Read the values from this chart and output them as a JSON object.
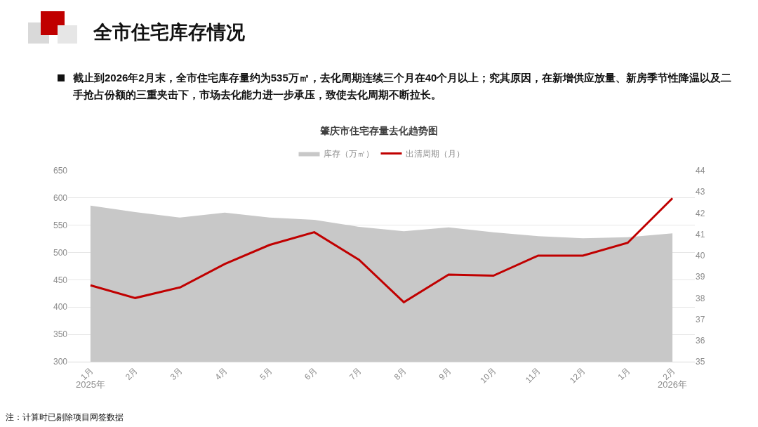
{
  "chart_data": {
    "type": "area",
    "title": "肇庆市住宅存量去化趋势图",
    "annotations": [
      "全市住宅库存情况",
      "截止到2026年2月末，全市住宅库存量约为535万㎡，去化周期连续三个月在40个月以上；究其原因，在新增供应放量、新房季节性降温以及二手抢占份额的三重夹击下，市场去化能力进一步承压，致使去化周期不断拉长。",
      "2025年",
      "2026年",
      "注：计算时已剔除项目网签数据"
    ],
    "categories": [
      "1月",
      "2月",
      "3月",
      "4月",
      "5月",
      "6月",
      "7月",
      "8月",
      "9月",
      "10月",
      "11月",
      "12月",
      "1月",
      "2月"
    ],
    "series": [
      {
        "name": "库存（万㎡）",
        "color": "#c8c8c8",
        "axis": "y",
        "values": [
          586,
          574,
          564,
          573,
          564,
          560,
          547,
          539,
          546,
          537,
          530,
          526,
          528,
          535
        ]
      },
      {
        "name": "出清周期（月）",
        "type": "line",
        "color": "#c00000",
        "axis": "y2",
        "values": [
          38.6,
          38.0,
          38.5,
          39.6,
          40.5,
          41.1,
          39.8,
          37.8,
          39.1,
          39.05,
          40.0,
          40.0,
          40.6,
          42.7
        ]
      }
    ],
    "ylim": [
      300,
      650
    ],
    "yticks": [
      300,
      350,
      400,
      450,
      500,
      550,
      600,
      650
    ],
    "y2lim": [
      35,
      44
    ],
    "y2ticks": [
      35,
      36,
      37,
      38,
      39,
      40,
      41,
      42,
      43,
      44
    ],
    "grid": "y",
    "legend": "top"
  }
}
